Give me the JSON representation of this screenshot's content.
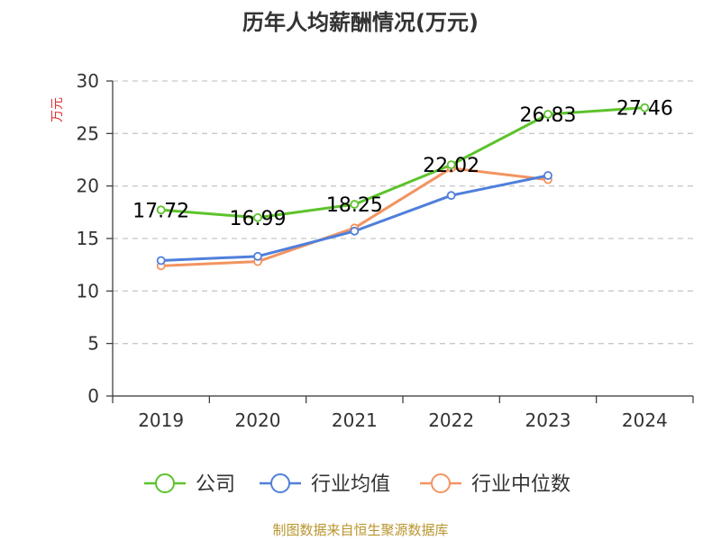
{
  "chart_data": {
    "type": "line",
    "title": "历年人均薪酬情况(万元)",
    "ylabel": "万元",
    "xlabel": "",
    "categories": [
      "2019",
      "2020",
      "2021",
      "2022",
      "2023",
      "2024"
    ],
    "ylim": [
      0,
      30
    ],
    "yticks": [
      0,
      5,
      10,
      15,
      20,
      25,
      30
    ],
    "grid": true,
    "legend_position": "bottom",
    "series": [
      {
        "name": "公司",
        "color": "#5cc32b",
        "values": [
          17.72,
          16.99,
          18.25,
          22.02,
          26.83,
          27.46
        ],
        "labels": [
          "17.72",
          "16.99",
          "18.25",
          "22.02",
          "26.83",
          "27.46"
        ]
      },
      {
        "name": "行业均值",
        "color": "#4f7fdb",
        "values": [
          12.9,
          13.3,
          15.7,
          19.1,
          21.0,
          null
        ]
      },
      {
        "name": "行业中位数",
        "color": "#f29461",
        "values": [
          12.4,
          12.8,
          16.0,
          21.7,
          20.6,
          null
        ]
      }
    ]
  },
  "footer": {
    "source": "制图数据来自恒生聚源数据库"
  }
}
